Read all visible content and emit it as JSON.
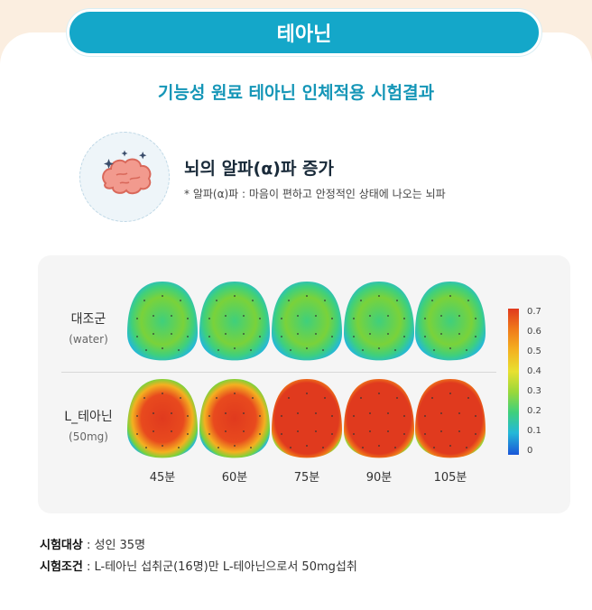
{
  "header": {
    "title": "테아닌"
  },
  "subtitle": "기능성 원료 테아닌 인체적용 시험결과",
  "finding": {
    "headline": "뇌의 알파(α)파 증가",
    "note": "* 알파(α)파 : 마음이 편하고 안정적인 상태에 나오는 뇌파",
    "icon": "brain-icon"
  },
  "figure": {
    "rows": [
      {
        "label": "대조군",
        "sublabel": "(water)"
      },
      {
        "label": "L_테아닌",
        "sublabel": "(50mg)"
      }
    ],
    "times": [
      "45분",
      "60분",
      "75분",
      "90분",
      "105분"
    ],
    "colorbar": {
      "ticks": [
        "0.7",
        "0.6",
        "0.5",
        "0.4",
        "0.3",
        "0.2",
        "0.1",
        "0"
      ],
      "colors": [
        "#e03a1e",
        "#f07a1a",
        "#f4b020",
        "#e8e030",
        "#9ad83a",
        "#3fd07c",
        "#24b8d8",
        "#1a56d8"
      ]
    },
    "control_levels": [
      0.35,
      0.36,
      0.36,
      0.38,
      0.33
    ],
    "theanine_levels": [
      0.62,
      0.65,
      0.7,
      0.7,
      0.7
    ]
  },
  "study": {
    "subject_label": "시험대상",
    "subject_value": " : 성인 35명",
    "condition_label": "시험조건",
    "condition_value": " : L-테아닌 섭취군(16명)만 L-테아닌으로서 50mg섭취"
  }
}
